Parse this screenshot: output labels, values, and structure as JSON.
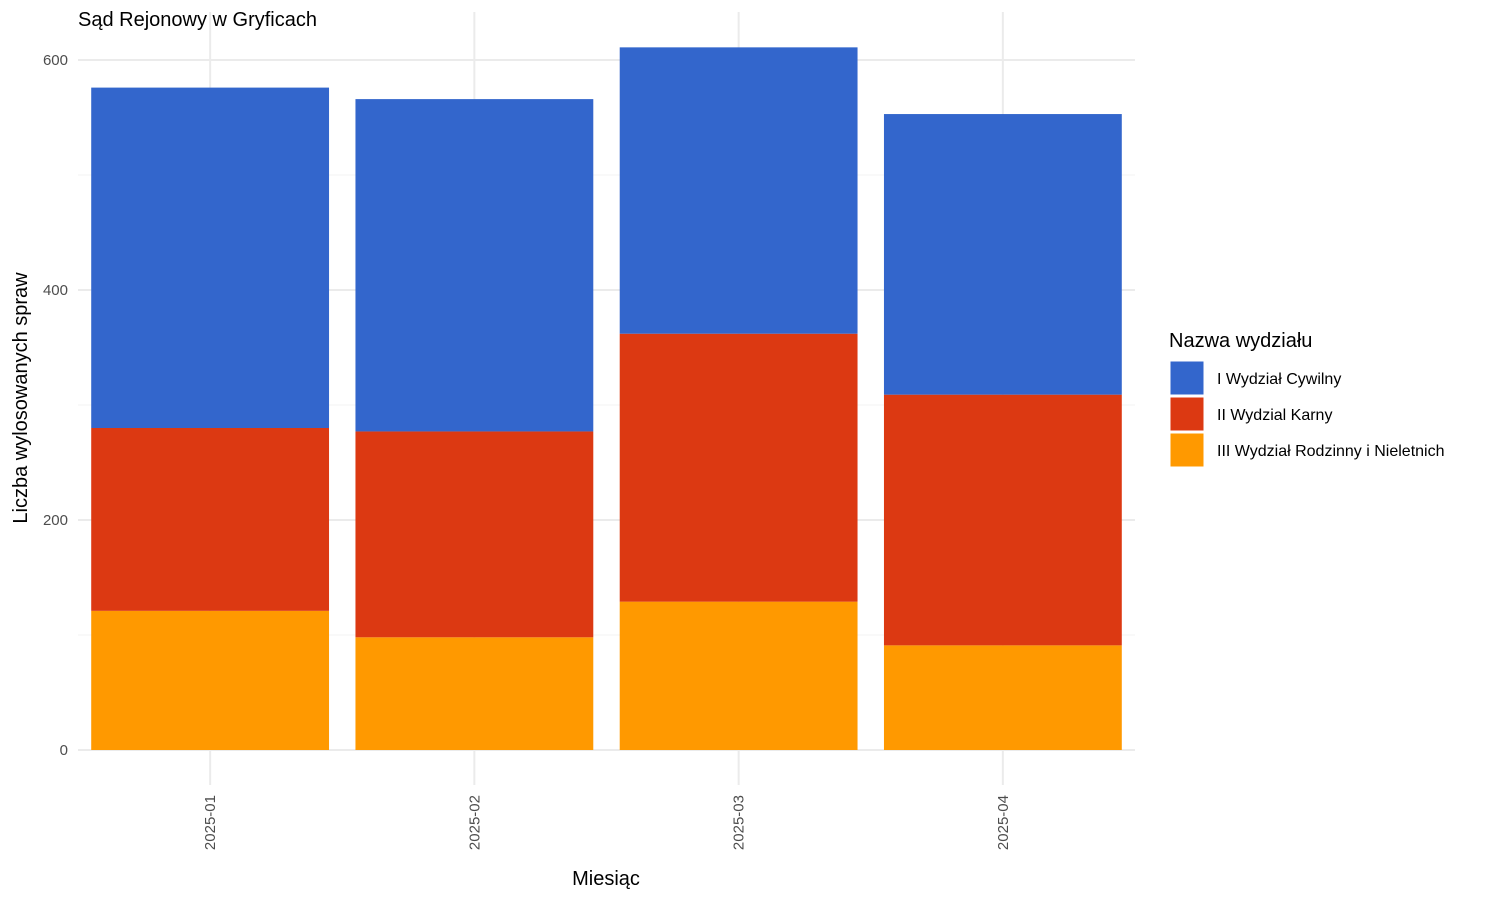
{
  "chart_data": {
    "type": "bar",
    "stacked": true,
    "title": "Sąd Rejonowy w Gryficach",
    "xlabel": "Miesiąc",
    "ylabel": "Liczba wylosowanych spraw",
    "categories": [
      "2025-01",
      "2025-02",
      "2025-03",
      "2025-04"
    ],
    "ylim": [
      0,
      620
    ],
    "yticks": [
      0,
      200,
      400,
      600
    ],
    "grid": true,
    "legend": {
      "title": "Nazwa wydziału",
      "position": "right"
    },
    "series": [
      {
        "name": "III Wydział Rodzinny i Nieletnich",
        "color": "#FF9900",
        "values": [
          121,
          98,
          129,
          91
        ]
      },
      {
        "name": "II Wydzial Karny",
        "color": "#DC3912",
        "values": [
          159,
          179,
          233,
          218
        ]
      },
      {
        "name": "I Wydział Cywilny",
        "color": "#3366CC",
        "values": [
          296,
          289,
          249,
          244
        ]
      }
    ],
    "legend_order": [
      "I Wydział Cywilny",
      "II Wydzial Karny",
      "III Wydział Rodzinny i Nieletnich"
    ]
  }
}
